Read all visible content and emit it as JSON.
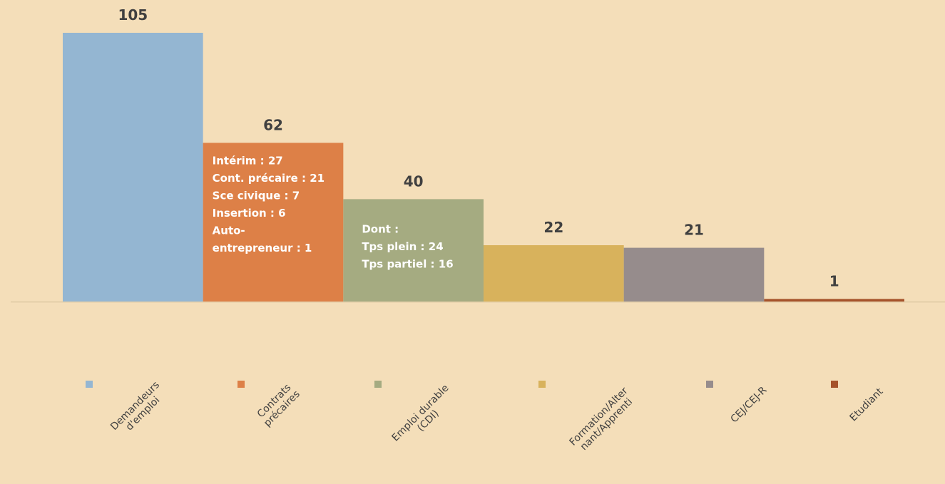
{
  "chart_data": {
    "type": "bar",
    "categories": [
      "Demandeurs\nd'emploi",
      "Contrats\nprécaires",
      "Emploi durable\n(CDI)",
      "Formation/Alter\nnant/Apprenti",
      "CEJ/CEJ-R",
      "Etudiant"
    ],
    "values": [
      105,
      62,
      40,
      22,
      21,
      1
    ],
    "colors": [
      "#94b6d2",
      "#dd8047",
      "#a5ab81",
      "#d8b25c",
      "#968c8c",
      "#a5522a"
    ],
    "annotations": [
      {
        "category": 1,
        "lines": [
          "Intérim : 27",
          "Cont. précaire : 21",
          "Sce civique : 7",
          "Insertion : 6",
          "Auto-",
          "entrepreneur : 1"
        ]
      },
      {
        "category": 2,
        "lines": [
          "Dont :",
          "Tps plein : 24",
          "Tps partiel : 16"
        ]
      }
    ]
  }
}
